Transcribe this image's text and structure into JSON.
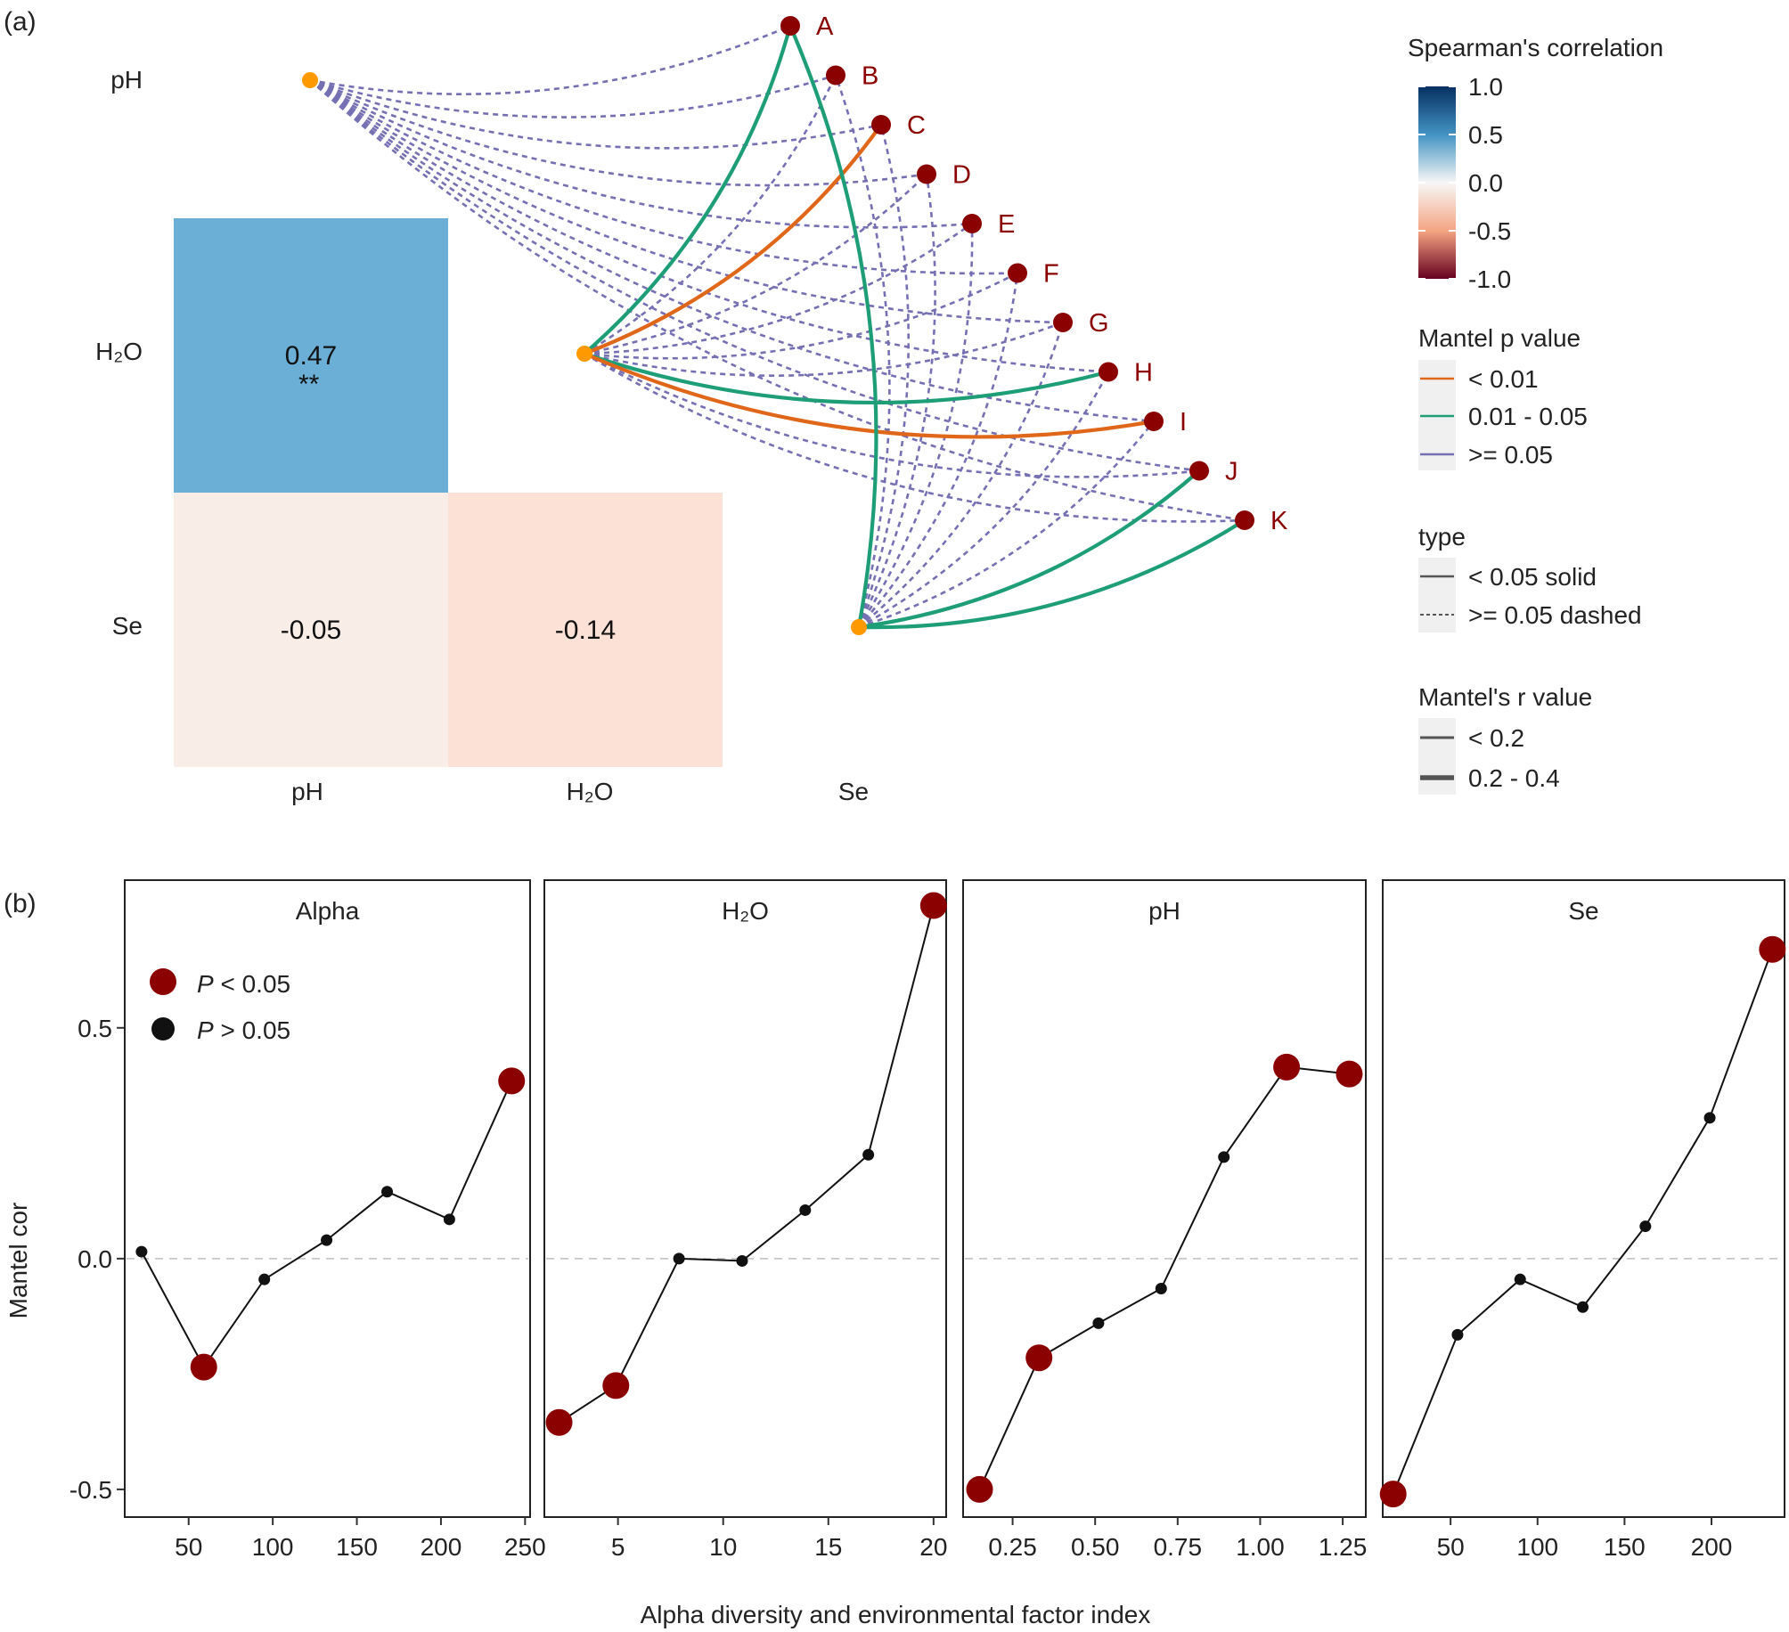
{
  "colors": {
    "node_env": "#ff9900",
    "node_group": "#8b0000",
    "p_lt_001": "#e0671a",
    "p_001_005": "#1e9e77",
    "p_ge_005": "#7570b3",
    "sig_point": "#8b0000",
    "nonsig_point": "#111111",
    "grad_top": "#053061",
    "grad_upper": "#4393c3",
    "grad_mid": "#f7f7f7",
    "grad_lower": "#f4a582",
    "grad_bottom": "#67001f"
  },
  "chart_data": [
    {
      "type": "heatmap",
      "panel_label": "(a)",
      "row_labels": [
        "pH",
        "H₂O",
        "Se"
      ],
      "col_labels": [
        "pH",
        "H₂O",
        "Se"
      ],
      "cells": [
        {
          "row": "H₂O",
          "col": "pH",
          "value": 0.47,
          "label": "0.47",
          "sig": "**",
          "color": "#6baed6"
        },
        {
          "row": "Se",
          "col": "pH",
          "value": -0.05,
          "label": "-0.05",
          "sig": "",
          "color": "#f9ede8"
        },
        {
          "row": "Se",
          "col": "H₂O",
          "value": -0.14,
          "label": "-0.14",
          "sig": "",
          "color": "#fbe1d6"
        }
      ],
      "network": {
        "env_nodes": [
          "pH",
          "H₂O",
          "Se"
        ],
        "group_nodes": [
          "A",
          "B",
          "C",
          "D",
          "E",
          "F",
          "G",
          "H",
          "I",
          "J",
          "K"
        ],
        "significant_links": [
          {
            "env": "H₂O",
            "group": "A",
            "p_class": "0.01 - 0.05"
          },
          {
            "env": "Se",
            "group": "A",
            "p_class": "0.01 - 0.05"
          },
          {
            "env": "H₂O",
            "group": "C",
            "p_class": "< 0.01"
          },
          {
            "env": "H₂O",
            "group": "H",
            "p_class": "0.01 - 0.05"
          },
          {
            "env": "H₂O",
            "group": "I",
            "p_class": "< 0.01"
          },
          {
            "env": "Se",
            "group": "J",
            "p_class": "0.01 - 0.05"
          },
          {
            "env": "Se",
            "group": "K",
            "p_class": "0.01 - 0.05"
          }
        ],
        "other_links_p_class": ">= 0.05"
      },
      "legend": {
        "gradient": {
          "title": "Spearman's correlation",
          "ticks": [
            "1.0",
            "0.5",
            "0.0",
            "-0.5",
            "-1.0"
          ]
        },
        "mantel_p": {
          "title": "Mantel p value",
          "items": [
            "< 0.01",
            "0.01 - 0.05",
            ">= 0.05"
          ]
        },
        "type": {
          "title": "type",
          "items": [
            "< 0.05 solid",
            ">= 0.05 dashed"
          ]
        },
        "mantel_r": {
          "title": "Mantel's r value",
          "items": [
            "< 0.2",
            "0.2 - 0.4"
          ]
        }
      }
    },
    {
      "type": "line",
      "panel_label": "(b)",
      "ylabel": "Mantel cor",
      "xlabel": "Alpha diversity and environmental factor index",
      "ylim": [
        -0.56,
        0.82
      ],
      "yticks": [
        -0.5,
        0.0,
        0.5
      ],
      "ytick_labels": [
        "-0.5",
        "0.0",
        "0.5"
      ],
      "legend": [
        {
          "label_italic": "P",
          "label_rest": " < 0.05",
          "kind": "sig"
        },
        {
          "label_italic": "P",
          "label_rest": " > 0.05",
          "kind": "nonsig"
        }
      ],
      "panels": [
        {
          "title": "Alpha",
          "xlim": [
            12,
            253
          ],
          "xticks": [
            50,
            100,
            150,
            200,
            250
          ],
          "xtick_labels": [
            "50",
            "100",
            "150",
            "200",
            "250"
          ],
          "x": [
            22,
            59,
            95,
            132,
            168,
            205,
            242
          ],
          "y": [
            0.015,
            -0.235,
            -0.045,
            0.04,
            0.145,
            0.085,
            0.385
          ],
          "sig": [
            false,
            true,
            false,
            false,
            false,
            false,
            true
          ]
        },
        {
          "title": "H₂O",
          "xlim": [
            1.5,
            20.6
          ],
          "xticks": [
            5,
            10,
            15,
            20
          ],
          "xtick_labels": [
            "5",
            "10",
            "15",
            "20"
          ],
          "x": [
            2.2,
            4.9,
            7.9,
            10.9,
            13.9,
            16.9,
            20
          ],
          "y": [
            -0.355,
            -0.275,
            0.0,
            -0.005,
            0.105,
            0.225,
            0.765
          ],
          "sig": [
            true,
            true,
            false,
            false,
            false,
            false,
            true
          ]
        },
        {
          "title": "pH",
          "xlim": [
            0.1,
            1.32
          ],
          "xticks": [
            0.25,
            0.5,
            0.75,
            1.0,
            1.25
          ],
          "xtick_labels": [
            "0.25",
            "0.50",
            "0.75",
            "1.00",
            "1.25"
          ],
          "x": [
            0.15,
            0.33,
            0.51,
            0.7,
            0.89,
            1.08,
            1.27
          ],
          "y": [
            -0.5,
            -0.215,
            -0.14,
            -0.065,
            0.22,
            0.415,
            0.4
          ],
          "sig": [
            true,
            true,
            false,
            false,
            false,
            true,
            true
          ]
        },
        {
          "title": "Se",
          "xlim": [
            11,
            242
          ],
          "xticks": [
            50,
            100,
            150,
            200
          ],
          "xtick_labels": [
            "50",
            "100",
            "150",
            "200"
          ],
          "x": [
            17,
            54,
            90,
            126,
            162,
            199,
            235
          ],
          "y": [
            -0.51,
            -0.165,
            -0.045,
            -0.105,
            0.07,
            0.305,
            0.67
          ],
          "sig": [
            true,
            false,
            false,
            false,
            false,
            false,
            true
          ]
        }
      ]
    }
  ]
}
